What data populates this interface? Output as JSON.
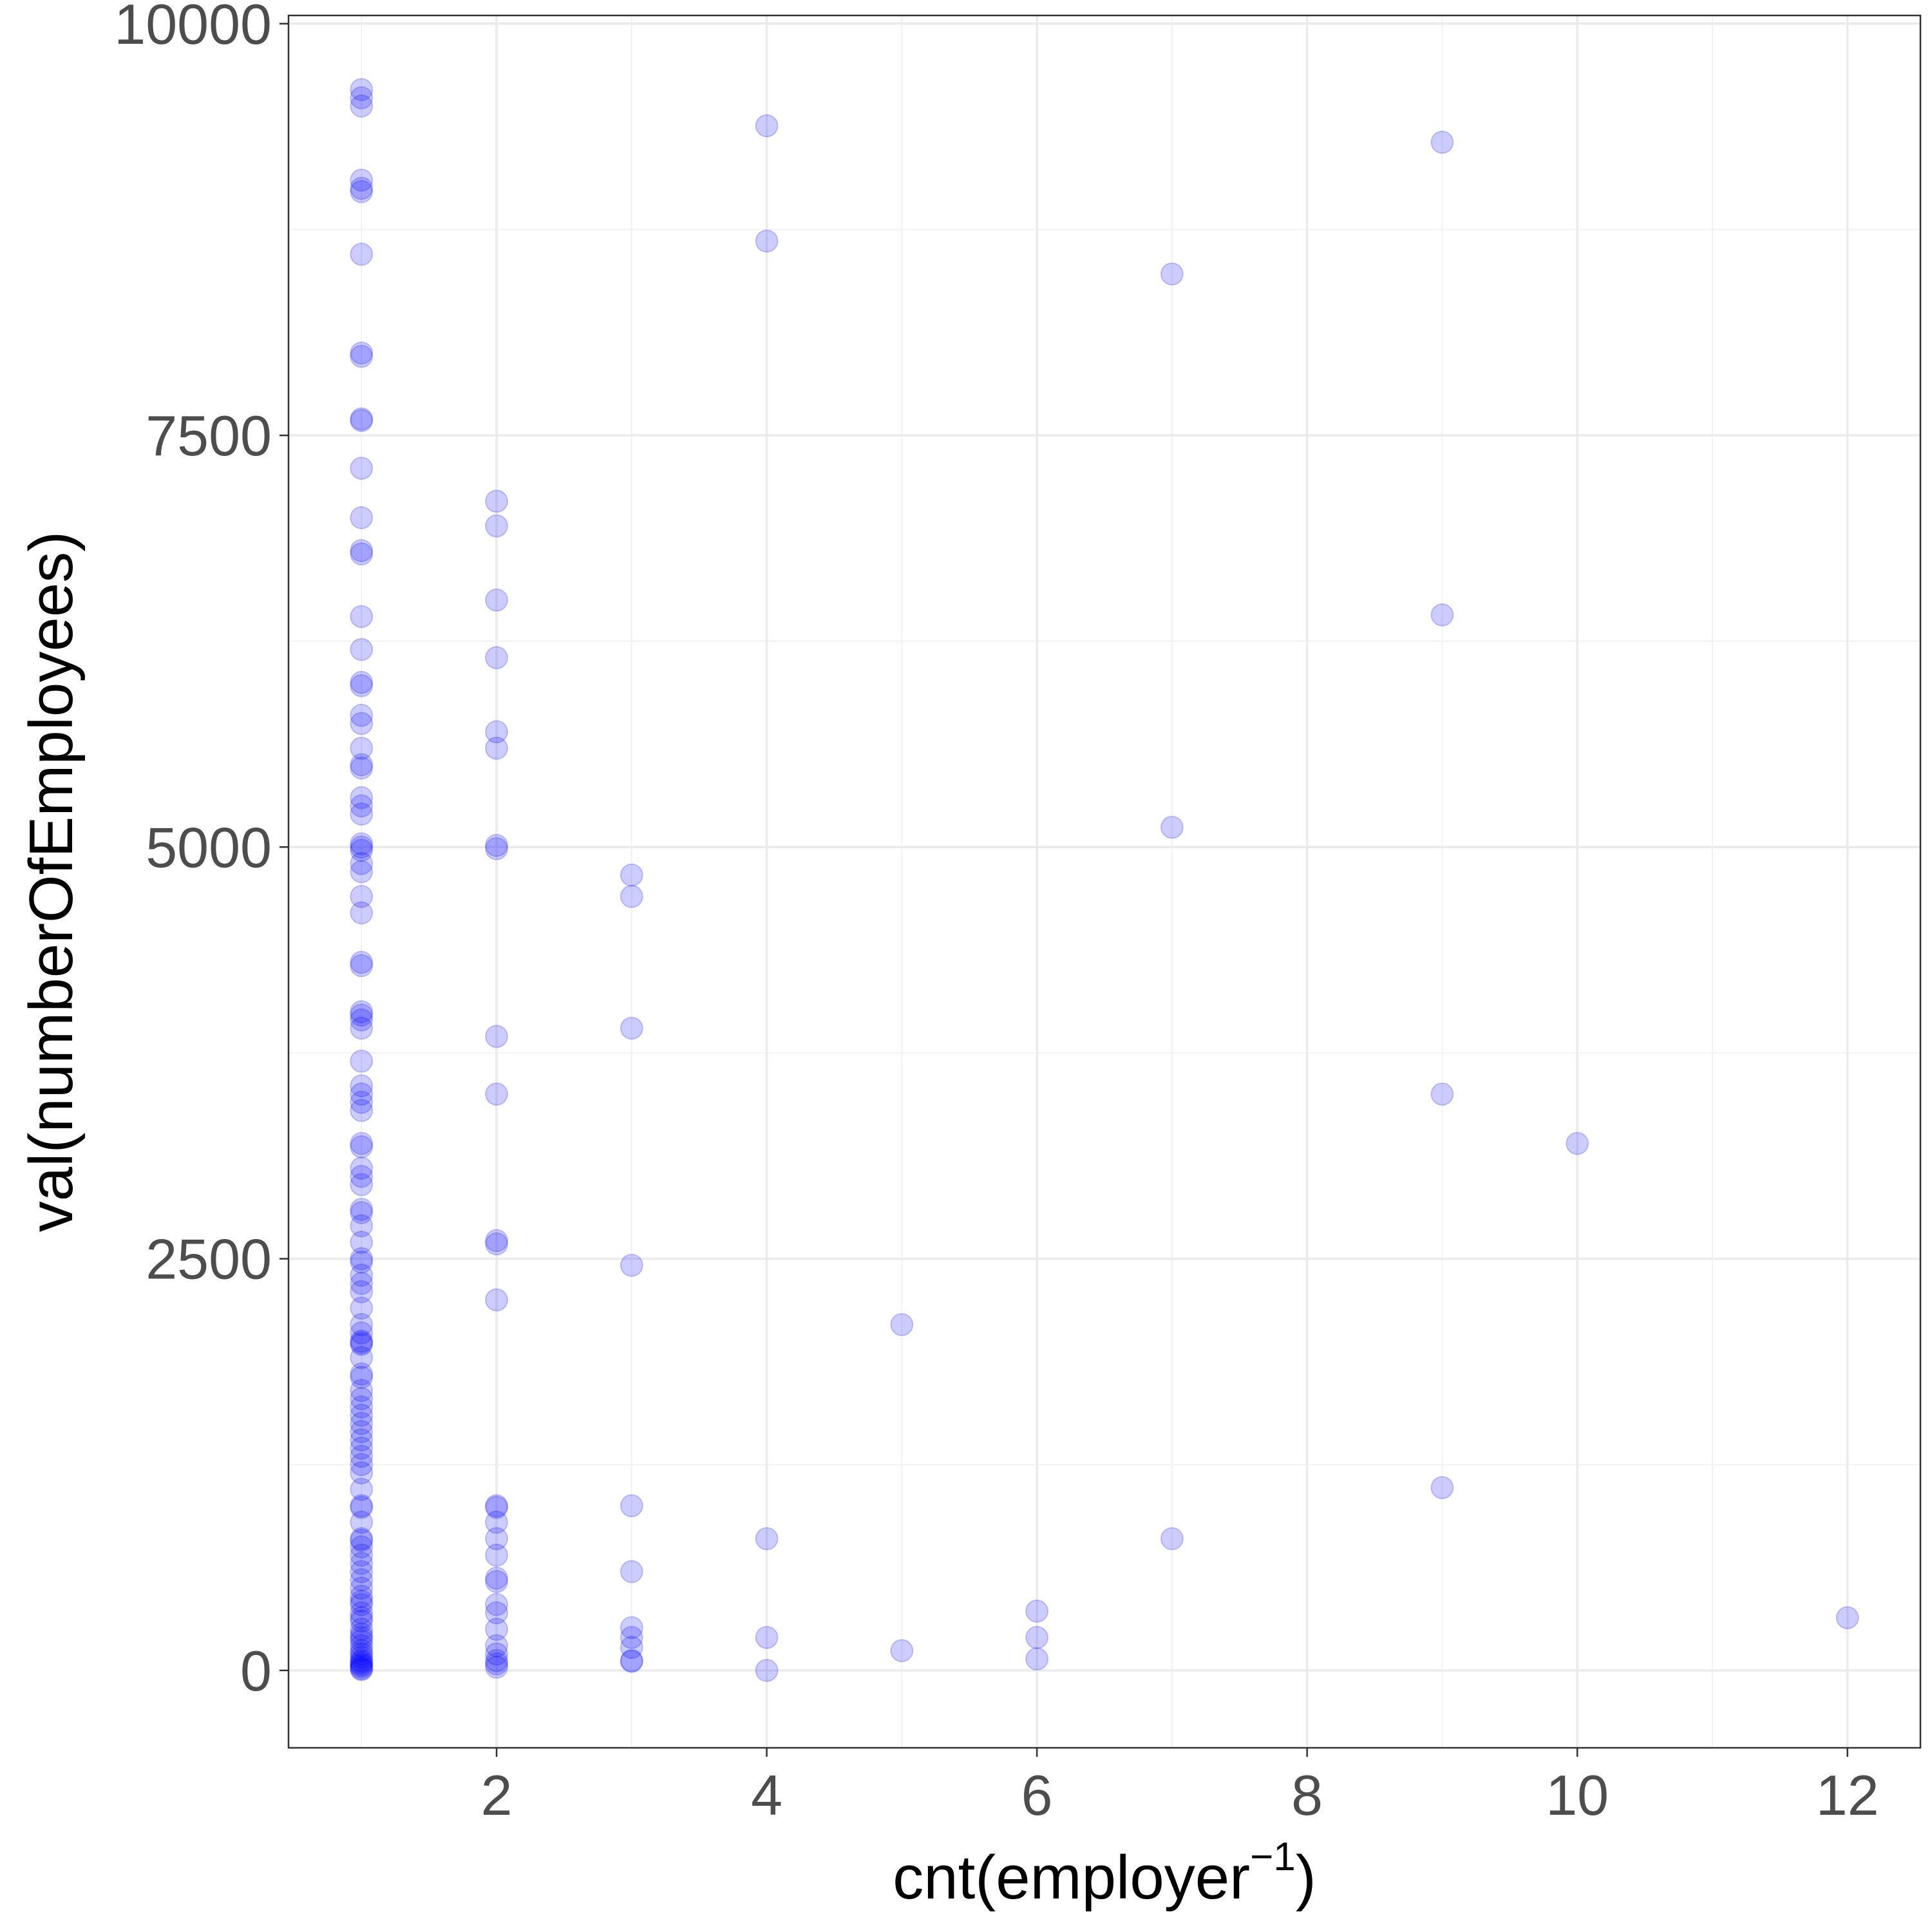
{
  "chart_data": {
    "type": "scatter",
    "xlabel": "cnt(employer",
    "xlabel_superscript": "−1",
    "xlabel_suffix": ")",
    "ylabel": "val(numberOfEmployees)",
    "xlim": [
      0.46,
      12.54
    ],
    "ylim": [
      -470,
      10050
    ],
    "x_ticks": [
      2,
      4,
      6,
      8,
      10,
      12
    ],
    "x_tick_labels": [
      "2",
      "4",
      "6",
      "8",
      "10",
      "12"
    ],
    "y_ticks": [
      0,
      2500,
      5000,
      7500,
      10000
    ],
    "y_tick_labels": [
      "0",
      "2500",
      "5000",
      "7500",
      "10000"
    ],
    "grid": true,
    "legend": "none",
    "point_color": "#0000ff",
    "point_opacity": 0.2,
    "points": [
      [
        1,
        9600
      ],
      [
        1,
        9550
      ],
      [
        1,
        9500
      ],
      [
        1,
        9050
      ],
      [
        1,
        9000
      ],
      [
        1,
        8980
      ],
      [
        1,
        8600
      ],
      [
        1,
        8000
      ],
      [
        1,
        7980
      ],
      [
        1,
        7600
      ],
      [
        1,
        7590
      ],
      [
        1,
        7300
      ],
      [
        1,
        7000
      ],
      [
        1,
        6800
      ],
      [
        1,
        6780
      ],
      [
        1,
        6400
      ],
      [
        1,
        6200
      ],
      [
        1,
        6000
      ],
      [
        1,
        5980
      ],
      [
        1,
        5800
      ],
      [
        1,
        5750
      ],
      [
        1,
        5600
      ],
      [
        1,
        5500
      ],
      [
        1,
        5480
      ],
      [
        1,
        5300
      ],
      [
        1,
        5250
      ],
      [
        1,
        5200
      ],
      [
        1,
        5020
      ],
      [
        1,
        5000
      ],
      [
        1,
        4980
      ],
      [
        1,
        4900
      ],
      [
        1,
        4850
      ],
      [
        1,
        4700
      ],
      [
        1,
        4600
      ],
      [
        1,
        4300
      ],
      [
        1,
        4280
      ],
      [
        1,
        4000
      ],
      [
        1,
        3980
      ],
      [
        1,
        3950
      ],
      [
        1,
        3900
      ],
      [
        1,
        3700
      ],
      [
        1,
        3550
      ],
      [
        1,
        3500
      ],
      [
        1,
        3450
      ],
      [
        1,
        3400
      ],
      [
        1,
        3200
      ],
      [
        1,
        3180
      ],
      [
        1,
        3050
      ],
      [
        1,
        3000
      ],
      [
        1,
        2950
      ],
      [
        1,
        2800
      ],
      [
        1,
        2780
      ],
      [
        1,
        2700
      ],
      [
        1,
        2600
      ],
      [
        1,
        2500
      ],
      [
        1,
        2480
      ],
      [
        1,
        2400
      ],
      [
        1,
        2350
      ],
      [
        1,
        2300
      ],
      [
        1,
        2200
      ],
      [
        1,
        2100
      ],
      [
        1,
        2050
      ],
      [
        1,
        2000
      ],
      [
        1,
        1990
      ],
      [
        1,
        1980
      ],
      [
        1,
        1900
      ],
      [
        1,
        1800
      ],
      [
        1,
        1780
      ],
      [
        1,
        1700
      ],
      [
        1,
        1650
      ],
      [
        1,
        1600
      ],
      [
        1,
        1550
      ],
      [
        1,
        1500
      ],
      [
        1,
        1450
      ],
      [
        1,
        1400
      ],
      [
        1,
        1350
      ],
      [
        1,
        1300
      ],
      [
        1,
        1250
      ],
      [
        1,
        1200
      ],
      [
        1,
        1100
      ],
      [
        1,
        1000
      ],
      [
        1,
        990
      ],
      [
        1,
        900
      ],
      [
        1,
        800
      ],
      [
        1,
        790
      ],
      [
        1,
        750
      ],
      [
        1,
        700
      ],
      [
        1,
        650
      ],
      [
        1,
        600
      ],
      [
        1,
        550
      ],
      [
        1,
        500
      ],
      [
        1,
        450
      ],
      [
        1,
        420
      ],
      [
        1,
        400
      ],
      [
        1,
        350
      ],
      [
        1,
        320
      ],
      [
        1,
        300
      ],
      [
        1,
        250
      ],
      [
        1,
        220
      ],
      [
        1,
        200
      ],
      [
        1,
        180
      ],
      [
        1,
        150
      ],
      [
        1,
        120
      ],
      [
        1,
        100
      ],
      [
        1,
        80
      ],
      [
        1,
        60
      ],
      [
        1,
        50
      ],
      [
        1,
        40
      ],
      [
        1,
        30
      ],
      [
        1,
        20
      ],
      [
        1,
        10
      ],
      [
        1,
        5
      ],
      [
        2,
        7100
      ],
      [
        2,
        6950
      ],
      [
        2,
        6500
      ],
      [
        2,
        6150
      ],
      [
        2,
        5700
      ],
      [
        2,
        5600
      ],
      [
        2,
        5010
      ],
      [
        2,
        4990
      ],
      [
        2,
        3850
      ],
      [
        2,
        3500
      ],
      [
        2,
        2610
      ],
      [
        2,
        2590
      ],
      [
        2,
        2250
      ],
      [
        2,
        1000
      ],
      [
        2,
        990
      ],
      [
        2,
        900
      ],
      [
        2,
        800
      ],
      [
        2,
        700
      ],
      [
        2,
        560
      ],
      [
        2,
        540
      ],
      [
        2,
        400
      ],
      [
        2,
        350
      ],
      [
        2,
        250
      ],
      [
        2,
        150
      ],
      [
        2,
        100
      ],
      [
        2,
        60
      ],
      [
        2,
        40
      ],
      [
        2,
        20
      ],
      [
        3,
        4830
      ],
      [
        3,
        4700
      ],
      [
        3,
        3900
      ],
      [
        3,
        2460
      ],
      [
        3,
        1000
      ],
      [
        3,
        600
      ],
      [
        3,
        260
      ],
      [
        3,
        200
      ],
      [
        3,
        140
      ],
      [
        3,
        60
      ],
      [
        3,
        55
      ],
      [
        4,
        9380
      ],
      [
        4,
        8680
      ],
      [
        4,
        800
      ],
      [
        4,
        200
      ],
      [
        4,
        0
      ],
      [
        5,
        2100
      ],
      [
        5,
        120
      ],
      [
        6,
        360
      ],
      [
        6,
        200
      ],
      [
        6,
        70
      ],
      [
        7,
        8480
      ],
      [
        7,
        5120
      ],
      [
        7,
        800
      ],
      [
        9,
        9280
      ],
      [
        9,
        6410
      ],
      [
        9,
        3500
      ],
      [
        9,
        1110
      ],
      [
        10,
        3200
      ],
      [
        12,
        320
      ]
    ]
  }
}
